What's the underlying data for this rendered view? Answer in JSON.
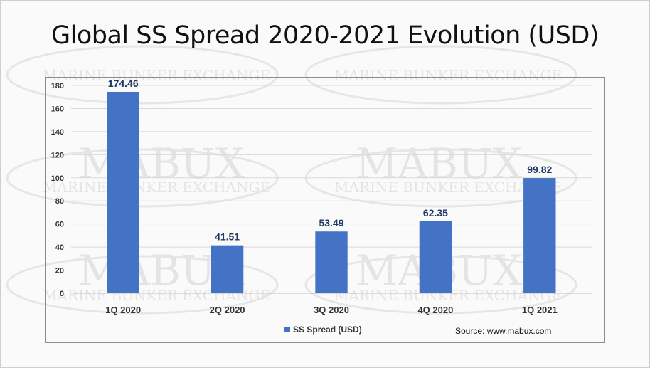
{
  "title": "Global SS Spread 2020-2021 Evolution (USD)",
  "watermark": {
    "brand": "MABUX",
    "tagline": "MARINE BUNKER EXCHANGE"
  },
  "source": "Source: www.mabux.com",
  "colors": {
    "bar": "#4472C4",
    "data_label": "#1F3864",
    "grid": "#d9d9d9"
  },
  "chart_data": {
    "type": "bar",
    "title": "",
    "xlabel": "",
    "ylabel": "",
    "categories": [
      "1Q 2020",
      "2Q 2020",
      "3Q 2020",
      "4Q 2020",
      "1Q 2021"
    ],
    "series": [
      {
        "name": "SS Spread (USD)",
        "values": [
          174.46,
          41.51,
          53.49,
          62.35,
          99.82
        ]
      }
    ],
    "data_labels": [
      "174.46",
      "41.51",
      "53.49",
      "62.35",
      "99.82"
    ],
    "yticks": [
      0,
      20,
      40,
      60,
      80,
      100,
      120,
      140,
      160,
      180
    ],
    "ylim": [
      0,
      180
    ],
    "grid": true,
    "legend_position": "bottom"
  }
}
